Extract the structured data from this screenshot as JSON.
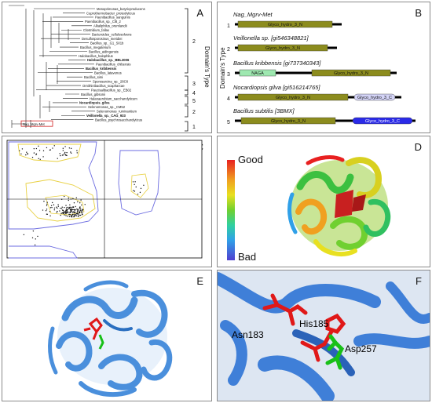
{
  "panels": {
    "A": {
      "label": "A",
      "axis_title": "Domain's Type",
      "taxa": [
        "Mesoprimonas_butyricproducens",
        "Cuprothermobacter_proteolyticus",
        "Paenibacillus_sanguinis",
        "Paenibacillus_sp._Cl8_2",
        "Alkaliphilus_oremlandii",
        "Clostridium_fallax",
        "Bacteroides_cellulosolvens",
        "Desulfosporosinus_meridiei",
        "Bacillus_sp._G1_S01b",
        "Bacillus_megaterium",
        "Bacillus_aidingensis",
        "Halobacillus_halophilus",
        "Halobacillus_sp._BBL2006",
        "Paenibacillus_chibensis",
        "Bacillus_kribbensis",
        "Bacillus_latavenus",
        "Bacillus_simi",
        "Sporosarcina_sp._28C8",
        "Ornithinibacillus_scapharcae",
        "Paucisalibacillus_sp._EB02",
        "Bacillus_gibsonii",
        "Halanaerobium_saccharolyticum",
        "Nocardiopsis_gilva",
        "Selenomonas_sp._CM52",
        "Selenomonas_ruminantium",
        "Veillonella_sp._CAG_933",
        "Bacillus_psychrosaccharolyticus",
        "Nag_Mgrv-Met"
      ],
      "bold_taxa": [
        12,
        14,
        22,
        25
      ],
      "highlight_taxon": "Nag_Mgrv-Met",
      "brackets": [
        {
          "label": "2"
        },
        {
          "label": "3"
        },
        {
          "label": "4"
        },
        {
          "label": "5"
        },
        {
          "label": "2"
        },
        {
          "label": "1"
        }
      ]
    },
    "B": {
      "label": "B",
      "axis_title": "Domain's Type",
      "rows": [
        {
          "index": "1",
          "name": "Nag_Mgrv-Met",
          "domains": [
            {
              "label": "Glyco_hydro_3_N",
              "kind": "olive"
            }
          ]
        },
        {
          "index": "2",
          "name": "Veillonella sp. [gi546348821]",
          "domains": [
            {
              "label": "Glyco_hydro_3_N",
              "kind": "olive"
            }
          ]
        },
        {
          "index": "3",
          "name": "Bacillus kribbensis [gi737340343]",
          "domains": [
            {
              "label": "NAGA",
              "kind": "green"
            },
            {
              "label": "Glyco_hydro_3_N",
              "kind": "olive"
            }
          ]
        },
        {
          "index": "4",
          "name": "Nocardiopsis gilva [gi516214765]",
          "domains": [
            {
              "label": "Glyco_hydro_3_N",
              "kind": "olive"
            },
            {
              "label": "Glyco_hydro_3_C",
              "kind": "lav"
            }
          ]
        },
        {
          "index": "5",
          "name": "Bacillus subtilis [3BMX]",
          "domains": [
            {
              "label": "Glyco_hydro_3_N",
              "kind": "olive"
            },
            {
              "label": "Glyco_hydro_3_C",
              "kind": "blue"
            }
          ]
        }
      ],
      "colors": {
        "olive": "#8c8c1e",
        "green": "#9ee8b0",
        "lav": "#d4d4f7",
        "blue": "#2a2ae8"
      }
    },
    "C": {
      "label": "C"
    },
    "D": {
      "label": "D",
      "legend_top": "Good",
      "legend_bottom": "Bad"
    },
    "E": {
      "label": "E"
    },
    "F": {
      "label": "F",
      "residues": [
        "Asn183",
        "His185",
        "Asp257"
      ]
    }
  }
}
